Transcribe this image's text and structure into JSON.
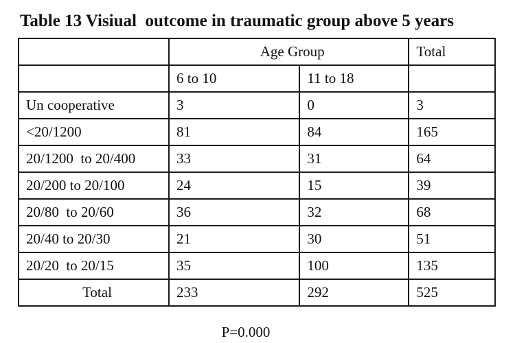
{
  "title": "Table 13 Visiual  outcome in traumatic group above 5 years",
  "table": {
    "group_header": "Age Group",
    "total_header": "Total",
    "sub_headers": [
      "6 to 10",
      "11 to 18"
    ],
    "rows": [
      {
        "label": "Un cooperative",
        "a": "3",
        "b": "0",
        "total": "3"
      },
      {
        "label": "<20/1200",
        "a": "81",
        "b": "84",
        "total": "165"
      },
      {
        "label": "20/1200  to 20/400",
        "a": "33",
        "b": "31",
        "total": "64"
      },
      {
        "label": "20/200 to 20/100",
        "a": "24",
        "b": "15",
        "total": "39"
      },
      {
        "label": "20/80  to 20/60",
        "a": "36",
        "b": "32",
        "total": "68"
      },
      {
        "label": "20/40 to 20/30",
        "a": "21",
        "b": "30",
        "total": "51"
      },
      {
        "label": "20/20  to 20/15",
        "a": "35",
        "b": "100",
        "total": "135"
      }
    ],
    "total_row": {
      "label": "Total",
      "a": "233",
      "b": "292",
      "total": "525"
    }
  },
  "footnote": "P=0.000"
}
